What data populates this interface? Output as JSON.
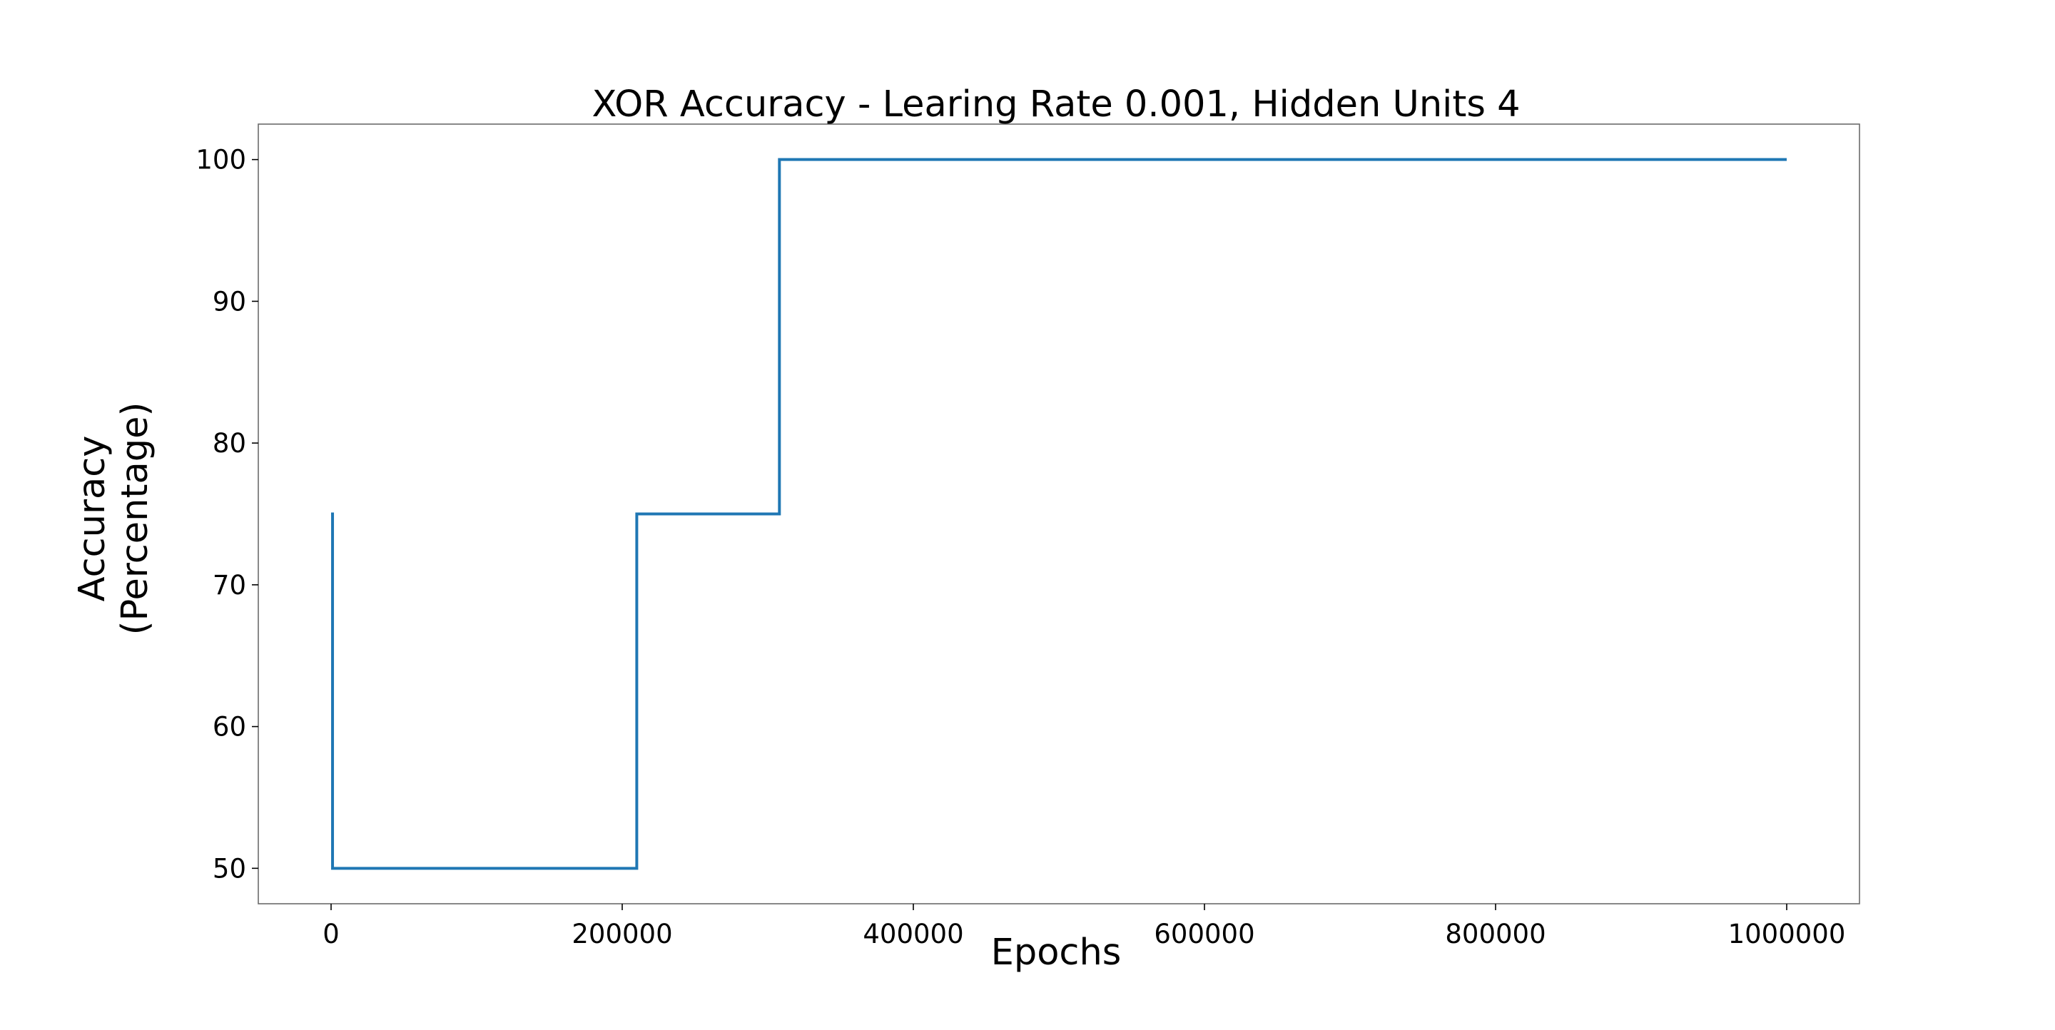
{
  "chart_data": {
    "type": "line",
    "title": "XOR Accuracy - Learing Rate 0.001, Hidden Units 4",
    "xlabel": "Epochs",
    "ylabel_lines": [
      "Accuracy",
      "(Percentage)"
    ],
    "xlim": [
      -50000,
      1050000
    ],
    "ylim": [
      47.5,
      102.5
    ],
    "xticks": [
      0,
      200000,
      400000,
      600000,
      800000,
      1000000
    ],
    "xtick_labels": [
      "0",
      "200000",
      "400000",
      "600000",
      "800000",
      "1000000"
    ],
    "yticks": [
      50,
      60,
      70,
      80,
      90,
      100
    ],
    "ytick_labels": [
      "50",
      "60",
      "70",
      "80",
      "90",
      "100"
    ],
    "grid": false,
    "legend": "none",
    "series": [
      {
        "color": "#1f77b4",
        "x": [
          0,
          1000,
          1000,
          210000,
          210000,
          308000,
          308000,
          1000000
        ],
        "y": [
          75,
          75,
          50,
          50,
          75,
          75,
          100,
          100
        ]
      }
    ]
  }
}
